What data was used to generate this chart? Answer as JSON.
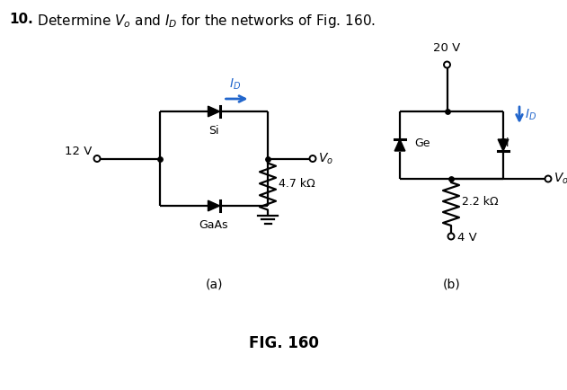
{
  "title_bold": "10.",
  "title_rest": "  Determine $V_o$ and $I_D$ for the networks of Fig. 160.",
  "fig_label": "FIG. 160",
  "background_color": "#ffffff",
  "circuit_a": {
    "label": "(a)",
    "voltage_src": "12 V",
    "diode1_label": "Si",
    "diode2_label": "GaAs",
    "resistor_label": "4.7 kΩ",
    "current_label": "$I_D$",
    "output_label": "$V_o$"
  },
  "circuit_b": {
    "label": "(b)",
    "voltage_top": "20 V",
    "voltage_bot": "4 V",
    "diode1_label": "Ge",
    "diode2_label": "Si",
    "resistor_label": "2.2 kΩ",
    "current_label": "$I_D$",
    "output_label": "$V_o$"
  }
}
